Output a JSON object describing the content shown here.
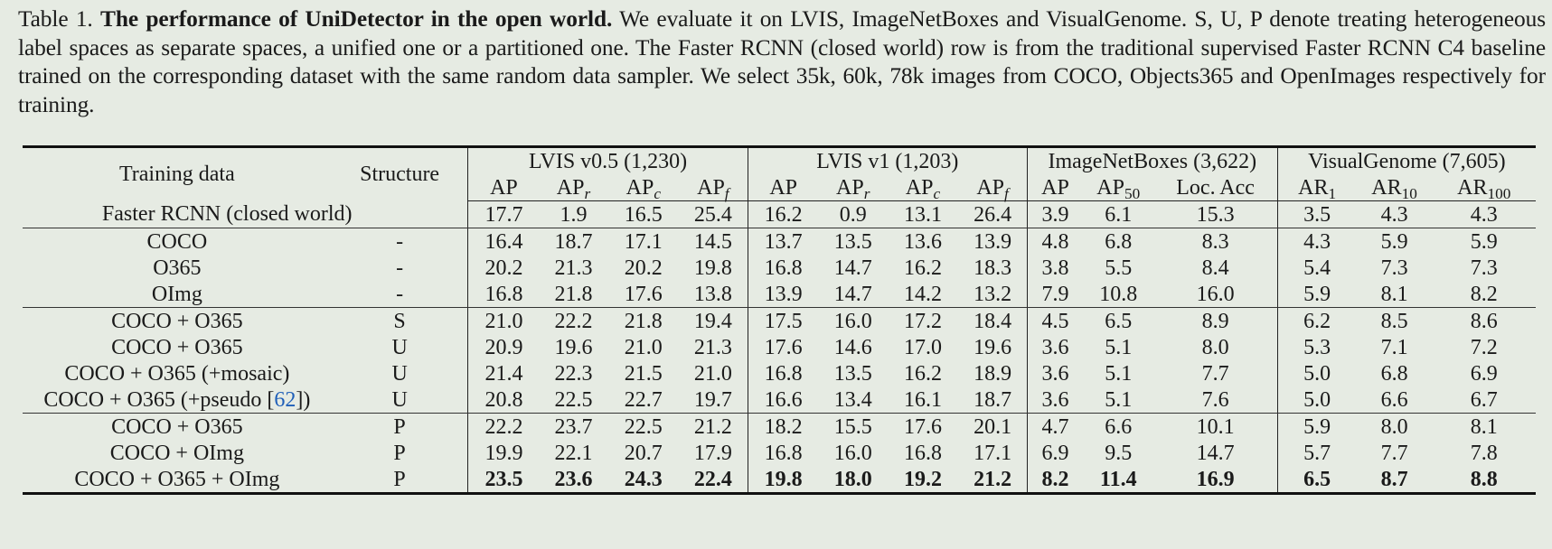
{
  "caption": {
    "label": "Table 1.",
    "title": "The performance of UniDetector in the open world.",
    "body": "We evaluate it on LVIS, ImageNetBoxes and VisualGenome. S, U, P denote treating heterogeneous label spaces as separate spaces, a unified one or a partitioned one. The Faster RCNN (closed world) row is from the traditional supervised Faster RCNN C4 baseline trained on the corresponding dataset with the same random data sampler. We select 35k, 60k, 78k images from COCO, Objects365 and OpenImages respectively for training."
  },
  "table": {
    "header": {
      "training_data": "Training data",
      "structure": "Structure",
      "groups": [
        {
          "label": "LVIS v0.5 (1,230)",
          "columns": [
            {
              "base": "AP",
              "sub": ""
            },
            {
              "base": "AP",
              "sub": "r"
            },
            {
              "base": "AP",
              "sub": "c"
            },
            {
              "base": "AP",
              "sub": "f"
            }
          ]
        },
        {
          "label": "LVIS v1 (1,203)",
          "columns": [
            {
              "base": "AP",
              "sub": ""
            },
            {
              "base": "AP",
              "sub": "r"
            },
            {
              "base": "AP",
              "sub": "c"
            },
            {
              "base": "AP",
              "sub": "f"
            }
          ]
        },
        {
          "label": "ImageNetBoxes (3,622)",
          "columns": [
            {
              "base": "AP",
              "sub": ""
            },
            {
              "base": "AP",
              "sub": "50"
            },
            {
              "base": "Loc. Acc",
              "sub": ""
            }
          ]
        },
        {
          "label": "VisualGenome (7,605)",
          "columns": [
            {
              "base": "AR",
              "sub": "1"
            },
            {
              "base": "AR",
              "sub": "10"
            },
            {
              "base": "AR",
              "sub": "100"
            }
          ]
        }
      ]
    },
    "baseline": {
      "label": "Faster RCNN (closed world)",
      "values": [
        "17.7",
        "1.9",
        "16.5",
        "25.4",
        "16.2",
        "0.9",
        "13.1",
        "26.4",
        "3.9",
        "6.1",
        "15.3",
        "3.5",
        "4.3",
        "4.3"
      ]
    },
    "rows": [
      {
        "training": "COCO",
        "cite": "",
        "training_suffix": "",
        "structure": "-",
        "values": [
          "16.4",
          "18.7",
          "17.1",
          "14.5",
          "13.7",
          "13.5",
          "13.6",
          "13.9",
          "4.8",
          "6.8",
          "8.3",
          "4.3",
          "5.9",
          "5.9"
        ]
      },
      {
        "training": "O365",
        "cite": "",
        "training_suffix": "",
        "structure": "-",
        "values": [
          "20.2",
          "21.3",
          "20.2",
          "19.8",
          "16.8",
          "14.7",
          "16.2",
          "18.3",
          "3.8",
          "5.5",
          "8.4",
          "5.4",
          "7.3",
          "7.3"
        ]
      },
      {
        "training": "OImg",
        "cite": "",
        "training_suffix": "",
        "structure": "-",
        "values": [
          "16.8",
          "21.8",
          "17.6",
          "13.8",
          "13.9",
          "14.7",
          "14.2",
          "13.2",
          "7.9",
          "10.8",
          "16.0",
          "5.9",
          "8.1",
          "8.2"
        ]
      },
      {
        "training": "COCO + O365",
        "cite": "",
        "training_suffix": "",
        "structure": "S",
        "values": [
          "21.0",
          "22.2",
          "21.8",
          "19.4",
          "17.5",
          "16.0",
          "17.2",
          "18.4",
          "4.5",
          "6.5",
          "8.9",
          "6.2",
          "8.5",
          "8.6"
        ]
      },
      {
        "training": "COCO + O365",
        "cite": "",
        "training_suffix": "",
        "structure": "U",
        "values": [
          "20.9",
          "19.6",
          "21.0",
          "21.3",
          "17.6",
          "14.6",
          "17.0",
          "19.6",
          "3.6",
          "5.1",
          "8.0",
          "5.3",
          "7.1",
          "7.2"
        ]
      },
      {
        "training": "COCO + O365 (+mosaic)",
        "cite": "",
        "training_suffix": "",
        "structure": "U",
        "values": [
          "21.4",
          "22.3",
          "21.5",
          "21.0",
          "16.8",
          "13.5",
          "16.2",
          "18.9",
          "3.6",
          "5.1",
          "7.7",
          "5.0",
          "6.8",
          "6.9"
        ]
      },
      {
        "training": "COCO + O365 (+pseudo [",
        "cite": "62",
        "training_suffix": "])",
        "structure": "U",
        "values": [
          "20.8",
          "22.5",
          "22.7",
          "19.7",
          "16.6",
          "13.4",
          "16.1",
          "18.7",
          "3.6",
          "5.1",
          "7.6",
          "5.0",
          "6.6",
          "6.7"
        ]
      },
      {
        "training": "COCO + O365",
        "cite": "",
        "training_suffix": "",
        "structure": "P",
        "values": [
          "22.2",
          "23.7",
          "22.5",
          "21.2",
          "18.2",
          "15.5",
          "17.6",
          "20.1",
          "4.7",
          "6.6",
          "10.1",
          "5.9",
          "8.0",
          "8.1"
        ]
      },
      {
        "training": "COCO + OImg",
        "cite": "",
        "training_suffix": "",
        "structure": "P",
        "values": [
          "19.9",
          "22.1",
          "20.7",
          "17.9",
          "16.8",
          "16.0",
          "16.8",
          "17.1",
          "6.9",
          "9.5",
          "14.7",
          "5.7",
          "7.7",
          "7.8"
        ]
      },
      {
        "training": "COCO + O365 + OImg",
        "cite": "",
        "training_suffix": "",
        "structure": "P",
        "bold": true,
        "values": [
          "23.5",
          "23.6",
          "24.3",
          "22.4",
          "19.8",
          "18.0",
          "19.2",
          "21.2",
          "8.2",
          "11.4",
          "16.9",
          "6.5",
          "8.7",
          "8.8"
        ]
      }
    ]
  }
}
